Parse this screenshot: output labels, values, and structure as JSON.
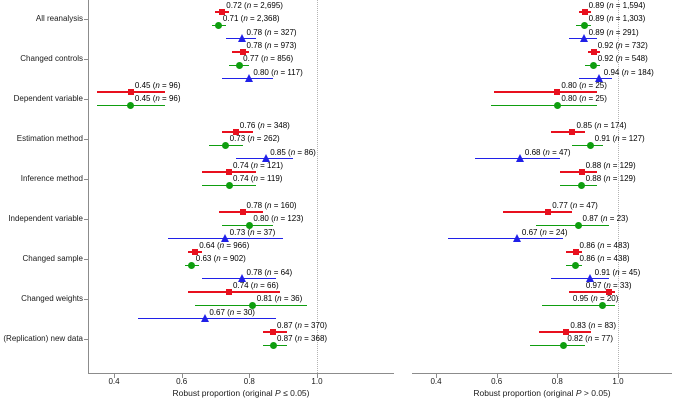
{
  "chart_data": {
    "type": "forest",
    "title": "",
    "categories": [
      "All reanalysis",
      "Changed controls",
      "Dependent variable",
      "Estimation method",
      "Inference method",
      "Independent variable",
      "Changed sample",
      "Changed weights",
      "(Replication) new data"
    ],
    "symbols": [
      {
        "name": "red-square",
        "shape": "square",
        "color": "#e8101e"
      },
      {
        "name": "green-circle",
        "shape": "circle",
        "color": "#0f9e0f"
      },
      {
        "name": "blue-triangle",
        "shape": "triangle",
        "color": "#2020e8"
      }
    ],
    "x_ticks": [
      "0.4",
      "0.6",
      "0.8",
      "1.0"
    ],
    "reference_line": 1.0,
    "grid": "off",
    "legend": "none",
    "panels": [
      {
        "xlabel": {
          "prefix": "Robust proportion (original ",
          "italic": "P",
          "suffix": " ≤ 0.05)"
        },
        "points": [
          {
            "cat": 0,
            "series": 0,
            "value": "0.72",
            "n": "2,695",
            "lo": 0.7,
            "hi": 0.74
          },
          {
            "cat": 0,
            "series": 1,
            "value": "0.71",
            "n": "2,368",
            "lo": 0.69,
            "hi": 0.73
          },
          {
            "cat": 0,
            "series": 2,
            "value": "0.78",
            "n": "327",
            "lo": 0.73,
            "hi": 0.82
          },
          {
            "cat": 1,
            "series": 0,
            "value": "0.78",
            "n": "973",
            "lo": 0.75,
            "hi": 0.8
          },
          {
            "cat": 1,
            "series": 1,
            "value": "0.77",
            "n": "856",
            "lo": 0.74,
            "hi": 0.8
          },
          {
            "cat": 1,
            "series": 2,
            "value": "0.80",
            "n": "117",
            "lo": 0.72,
            "hi": 0.87
          },
          {
            "cat": 2,
            "series": 0,
            "value": "0.45",
            "n": "96",
            "lo": 0.35,
            "hi": 0.55
          },
          {
            "cat": 2,
            "series": 1,
            "value": "0.45",
            "n": "96",
            "lo": 0.35,
            "hi": 0.55
          },
          {
            "cat": 3,
            "series": 0,
            "value": "0.76",
            "n": "348",
            "lo": 0.72,
            "hi": 0.81
          },
          {
            "cat": 3,
            "series": 1,
            "value": "0.73",
            "n": "262",
            "lo": 0.68,
            "hi": 0.78
          },
          {
            "cat": 3,
            "series": 2,
            "value": "0.85",
            "n": "86",
            "lo": 0.76,
            "hi": 0.93
          },
          {
            "cat": 4,
            "series": 0,
            "value": "0.74",
            "n": "121",
            "lo": 0.66,
            "hi": 0.82
          },
          {
            "cat": 4,
            "series": 1,
            "value": "0.74",
            "n": "119",
            "lo": 0.66,
            "hi": 0.82
          },
          {
            "cat": 5,
            "series": 0,
            "value": "0.78",
            "n": "160",
            "lo": 0.71,
            "hi": 0.84
          },
          {
            "cat": 5,
            "series": 1,
            "value": "0.80",
            "n": "123",
            "lo": 0.72,
            "hi": 0.87
          },
          {
            "cat": 5,
            "series": 2,
            "value": "0.73",
            "n": "37",
            "lo": 0.56,
            "hi": 0.9
          },
          {
            "cat": 6,
            "series": 0,
            "value": "0.64",
            "n": "966",
            "lo": 0.62,
            "hi": 0.66
          },
          {
            "cat": 6,
            "series": 1,
            "value": "0.63",
            "n": "902",
            "lo": 0.61,
            "hi": 0.65
          },
          {
            "cat": 6,
            "series": 2,
            "value": "0.78",
            "n": "64",
            "lo": 0.66,
            "hi": 0.88
          },
          {
            "cat": 7,
            "series": 0,
            "value": "0.74",
            "n": "66",
            "lo": 0.62,
            "hi": 0.89
          },
          {
            "cat": 7,
            "series": 1,
            "value": "0.81",
            "n": "36",
            "lo": 0.64,
            "hi": 0.97
          },
          {
            "cat": 7,
            "series": 2,
            "value": "0.67",
            "n": "30",
            "lo": 0.47,
            "hi": 0.88
          },
          {
            "cat": 8,
            "series": 0,
            "value": "0.87",
            "n": "370",
            "lo": 0.84,
            "hi": 0.91
          },
          {
            "cat": 8,
            "series": 1,
            "value": "0.87",
            "n": "368",
            "lo": 0.84,
            "hi": 0.91
          }
        ]
      },
      {
        "xlabel": {
          "prefix": "Robust proportion (original ",
          "italic": "P",
          "suffix": " > 0.05)"
        },
        "points": [
          {
            "cat": 0,
            "series": 0,
            "value": "0.89",
            "n": "1,594",
            "lo": 0.87,
            "hi": 0.91
          },
          {
            "cat": 0,
            "series": 1,
            "value": "0.89",
            "n": "1,303",
            "lo": 0.86,
            "hi": 0.91
          },
          {
            "cat": 0,
            "series": 2,
            "value": "0.89",
            "n": "291",
            "lo": 0.84,
            "hi": 0.93
          },
          {
            "cat": 1,
            "series": 0,
            "value": "0.92",
            "n": "732",
            "lo": 0.9,
            "hi": 0.94
          },
          {
            "cat": 1,
            "series": 1,
            "value": "0.92",
            "n": "548",
            "lo": 0.89,
            "hi": 0.94
          },
          {
            "cat": 1,
            "series": 2,
            "value": "0.94",
            "n": "184",
            "lo": 0.87,
            "hi": 0.98
          },
          {
            "cat": 2,
            "series": 0,
            "value": "0.80",
            "n": "25",
            "lo": 0.59,
            "hi": 0.93
          },
          {
            "cat": 2,
            "series": 1,
            "value": "0.80",
            "n": "25",
            "lo": 0.58,
            "hi": 0.93
          },
          {
            "cat": 3,
            "series": 0,
            "value": "0.85",
            "n": "174",
            "lo": 0.78,
            "hi": 0.89
          },
          {
            "cat": 3,
            "series": 1,
            "value": "0.91",
            "n": "127",
            "lo": 0.85,
            "hi": 0.95
          },
          {
            "cat": 3,
            "series": 2,
            "value": "0.68",
            "n": "47",
            "lo": 0.53,
            "hi": 0.81
          },
          {
            "cat": 4,
            "series": 0,
            "value": "0.88",
            "n": "129",
            "lo": 0.81,
            "hi": 0.93
          },
          {
            "cat": 4,
            "series": 1,
            "value": "0.88",
            "n": "129",
            "lo": 0.81,
            "hi": 0.93
          },
          {
            "cat": 5,
            "series": 0,
            "value": "0.77",
            "n": "47",
            "lo": 0.62,
            "hi": 0.85
          },
          {
            "cat": 5,
            "series": 1,
            "value": "0.87",
            "n": "23",
            "lo": 0.73,
            "hi": 0.97
          },
          {
            "cat": 5,
            "series": 2,
            "value": "0.67",
            "n": "24",
            "lo": 0.44,
            "hi": 0.82
          },
          {
            "cat": 6,
            "series": 0,
            "value": "0.86",
            "n": "483",
            "lo": 0.83,
            "hi": 0.88
          },
          {
            "cat": 6,
            "series": 1,
            "value": "0.86",
            "n": "438",
            "lo": 0.83,
            "hi": 0.88
          },
          {
            "cat": 6,
            "series": 2,
            "value": "0.91",
            "n": "45",
            "lo": 0.78,
            "hi": 0.97
          },
          {
            "cat": 7,
            "series": 0,
            "value": "0.97",
            "n": "33",
            "lo": 0.84,
            "hi": 0.99,
            "dx": -23
          },
          {
            "cat": 7,
            "series": 1,
            "value": "0.95",
            "n": "20",
            "lo": 0.75,
            "hi": 0.99,
            "dx": -30
          },
          {
            "cat": 8,
            "series": 0,
            "value": "0.83",
            "n": "83",
            "lo": 0.74,
            "hi": 0.91
          },
          {
            "cat": 8,
            "series": 1,
            "value": "0.82",
            "n": "77",
            "lo": 0.71,
            "hi": 0.89
          }
        ]
      }
    ]
  },
  "colors": {
    "axis": "#8c8c8c",
    "text": "#1a1a1a",
    "reference_line": "#b3b3b3"
  }
}
